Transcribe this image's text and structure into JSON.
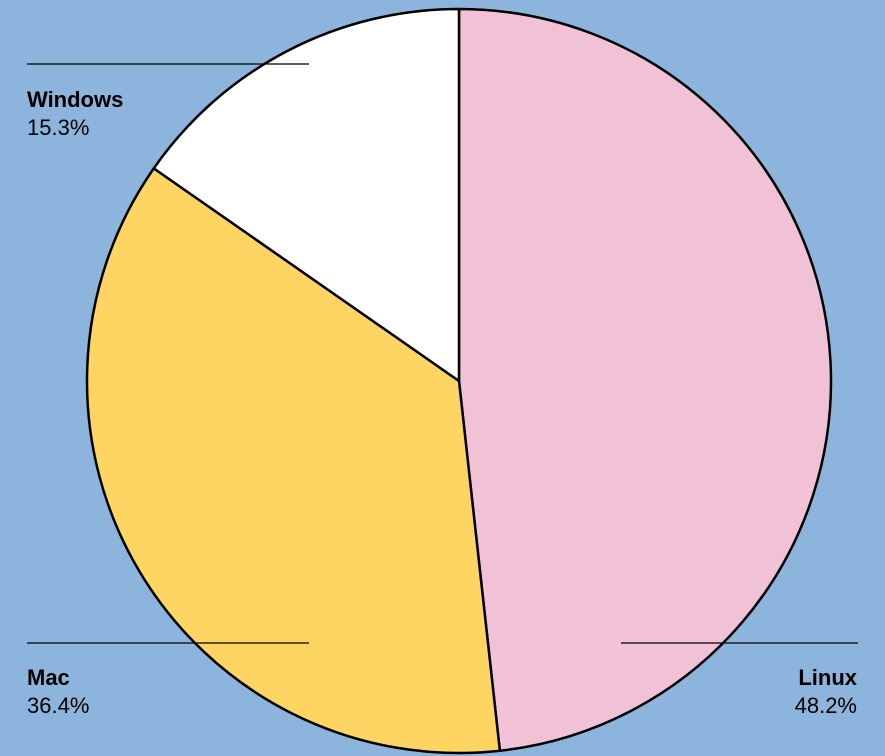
{
  "chart_data": {
    "type": "pie",
    "slices": [
      {
        "label": "Linux",
        "value": 48.2,
        "value_label": "48.2%",
        "color": "#F1C2D5"
      },
      {
        "label": "Mac",
        "value": 36.4,
        "value_label": "36.4%",
        "color": "#FED562"
      },
      {
        "label": "Windows",
        "value": 15.3,
        "value_label": "15.3%",
        "color": "#FFFFFF"
      }
    ],
    "start": "12 o'clock",
    "direction": "clockwise",
    "legend": "none",
    "background_color": "#8DB4DC",
    "edge_color": "#000000"
  }
}
